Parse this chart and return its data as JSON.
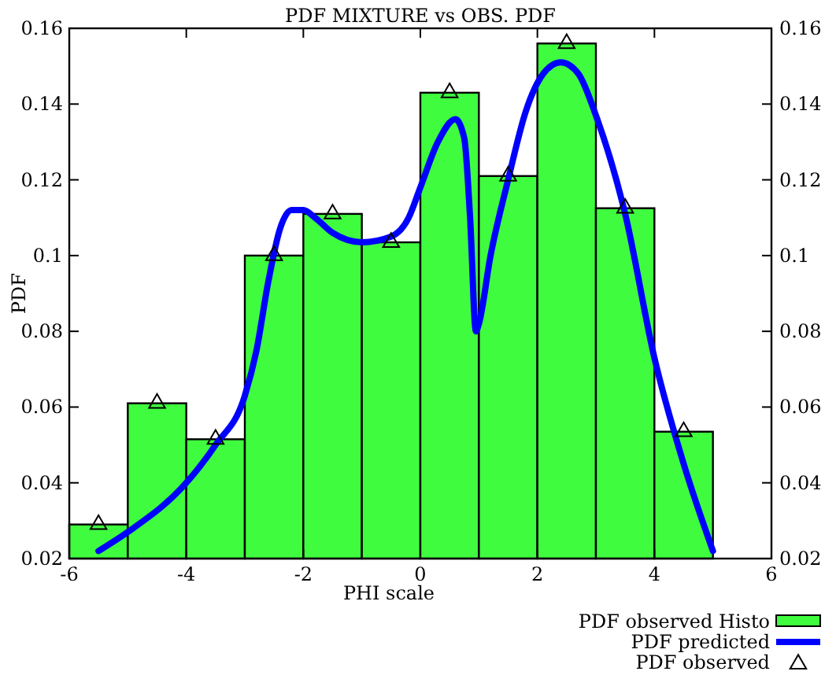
{
  "chart_data": {
    "type": "histogram",
    "title": "PDF MIXTURE vs OBS. PDF",
    "xlabel": "PHI scale",
    "ylabel": "PDF",
    "bins": [
      -6,
      -5,
      -4,
      -3,
      -2,
      -1,
      0,
      1,
      2,
      3,
      4,
      5
    ],
    "xlim": [
      -6,
      6
    ],
    "xticks": [
      -6,
      -4,
      -2,
      0,
      2,
      4,
      6
    ],
    "ylim": [
      0.02,
      0.16
    ],
    "yticks": [
      0.02,
      0.04,
      0.06,
      0.08,
      0.1,
      0.12,
      0.14,
      0.16
    ],
    "y2lim": [
      0.02,
      0.16
    ],
    "y2ticks": [
      0.02,
      0.04,
      0.06,
      0.08,
      0.1,
      0.12,
      0.14,
      0.16
    ],
    "grid": false,
    "legend": "bottom right",
    "series": [
      {
        "name": "PDF observed Histo",
        "color": "#3ffc3f",
        "values": [
          0.029,
          0.061,
          0.0515,
          0.1,
          0.111,
          0.1035,
          0.143,
          0.121,
          0.156,
          0.1125,
          0.0535
        ]
      },
      {
        "name": "PDF predicted",
        "type": "line",
        "color": "#0000ff",
        "line_style": "solid",
        "x": [
          -5.5,
          -5,
          -4,
          -3.5,
          -3,
          -2.8,
          -2.6,
          -2.4,
          -2.2,
          -2,
          -1.8,
          -1.5,
          -1,
          -0.5,
          -0.2,
          0,
          0.3,
          0.6,
          0.75,
          0.85,
          0.95,
          1,
          1.2,
          1.5,
          1.8,
          2.1,
          2.4,
          2.7,
          3,
          3.5,
          4,
          4.5,
          5
        ],
        "values": [
          0.022,
          0.027,
          0.04,
          0.05,
          0.063,
          0.075,
          0.093,
          0.107,
          0.112,
          0.112,
          0.11,
          0.106,
          0.1035,
          0.105,
          0.11,
          0.118,
          0.13,
          0.136,
          0.131,
          0.11,
          0.08,
          0.082,
          0.1,
          0.12,
          0.138,
          0.148,
          0.151,
          0.148,
          0.137,
          0.111,
          0.073,
          0.045,
          0.022
        ]
      },
      {
        "name": "PDF observed",
        "type": "scatter",
        "color": "#000000",
        "marker": "triangle",
        "x": [
          -5.5,
          -4.5,
          -3.5,
          -2.5,
          -1.5,
          -0.5,
          0.5,
          1.5,
          2.5,
          3.5,
          4.5
        ],
        "values": [
          0.029,
          0.061,
          0.0515,
          0.1,
          0.111,
          0.1035,
          0.143,
          0.121,
          0.156,
          0.1125,
          0.0535
        ]
      }
    ]
  }
}
